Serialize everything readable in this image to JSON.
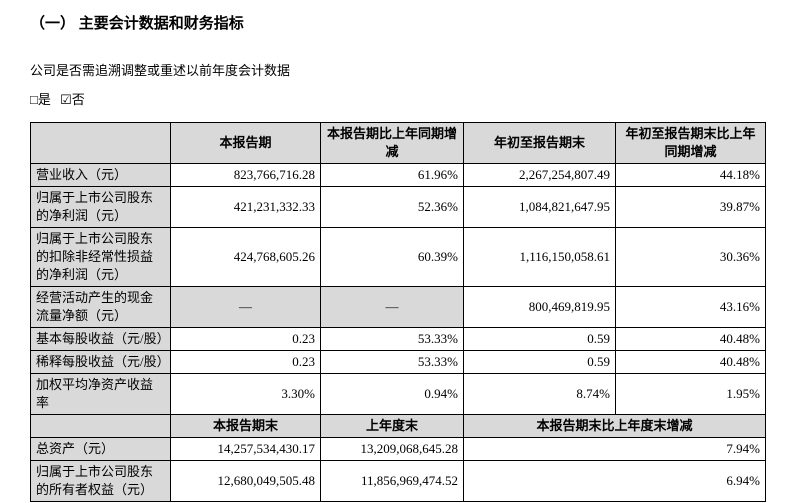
{
  "title": "（一）  主要会计数据和财务指标",
  "intro": "公司是否需追溯调整或重述以前年度会计数据",
  "checkboxes": {
    "yes_icon": "□",
    "yes_label": "是",
    "no_icon": "☑",
    "no_label": "否"
  },
  "table": {
    "header1": [
      "",
      "本报告期",
      "本报告期比上年同期增减",
      "年初至报告期末",
      "年初至报告期末比上年同期增减"
    ],
    "rows1": [
      {
        "label": "营业收入（元）",
        "c1": "823,766,716.28",
        "c2": "61.96%",
        "c3": "2,267,254,807.49",
        "c4": "44.18%"
      },
      {
        "label": "归属于上市公司股东的净利润（元）",
        "c1": "421,231,332.33",
        "c2": "52.36%",
        "c3": "1,084,821,647.95",
        "c4": "39.87%"
      },
      {
        "label": "归属于上市公司股东的扣除非经常性损益的净利润（元）",
        "c1": "424,768,605.26",
        "c2": "60.39%",
        "c3": "1,116,150,058.61",
        "c4": "30.36%"
      },
      {
        "label": "经营活动产生的现金流量净额（元）",
        "c1": "—",
        "c2": "—",
        "c3": "800,469,819.95",
        "c4": "43.16%"
      },
      {
        "label": "基本每股收益（元/股）",
        "c1": "0.23",
        "c2": "53.33%",
        "c3": "0.59",
        "c4": "40.48%"
      },
      {
        "label": "稀释每股收益（元/股）",
        "c1": "0.23",
        "c2": "53.33%",
        "c3": "0.59",
        "c4": "40.48%"
      },
      {
        "label": "加权平均净资产收益率",
        "c1": "3.30%",
        "c2": "0.94%",
        "c3": "8.74%",
        "c4": "1.95%"
      }
    ],
    "header2": [
      "",
      "本报告期末",
      "上年度末",
      "本报告期末比上年度末增减"
    ],
    "rows2": [
      {
        "label": "总资产（元）",
        "c1": "14,257,534,430.17",
        "c2": "13,209,068,645.28",
        "c3": "7.94%"
      },
      {
        "label": "归属于上市公司股东的所有者权益（元）",
        "c1": "12,680,049,505.48",
        "c2": "11,856,969,474.52",
        "c3": "6.94%"
      }
    ]
  },
  "colors": {
    "header_fill": "#d9d9d9",
    "border": "#000000"
  }
}
